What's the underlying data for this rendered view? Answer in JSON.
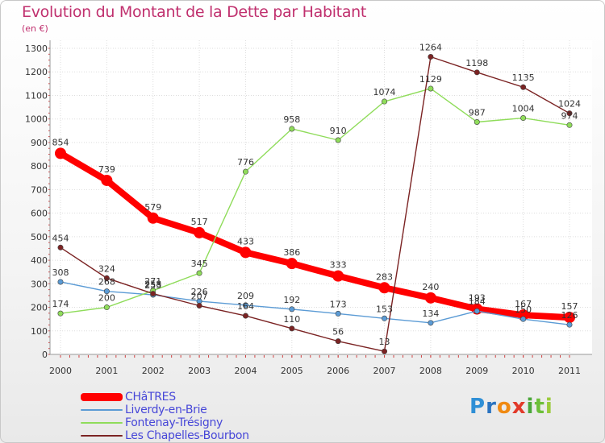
{
  "title": "Evolution du Montant de la Dette par Habitant",
  "unit_label": "(en €)",
  "logo": "Proxiti",
  "chart_data": {
    "type": "line",
    "title": "Evolution du Montant de la Dette par Habitant",
    "subtitle": "(en €)",
    "x": [
      "2000",
      "2001",
      "2002",
      "2003",
      "2004",
      "2005",
      "2006",
      "2007",
      "2008",
      "2009",
      "2010",
      "2011"
    ],
    "ylim": [
      0,
      1300
    ],
    "yticks": [
      0,
      100,
      200,
      300,
      400,
      500,
      600,
      700,
      800,
      900,
      1000,
      1100,
      1200,
      1300
    ],
    "grid": true,
    "legend_position": "bottom-left",
    "series": [
      {
        "name": "CHâTRES",
        "color": "#ff0000",
        "values": [
          854,
          739,
          579,
          517,
          433,
          386,
          333,
          283,
          240,
          193,
          167,
          157
        ]
      },
      {
        "name": "Liverdy-en-Brie",
        "color": "#5b9bd5",
        "values": [
          308,
          268,
          253,
          226,
          209,
          192,
          173,
          153,
          134,
          184,
          150,
          126
        ]
      },
      {
        "name": "Fontenay-Trésigny",
        "color": "#8fdc5a",
        "values": [
          174,
          200,
          271,
          345,
          776,
          958,
          910,
          1074,
          1129,
          987,
          1004,
          974
        ]
      },
      {
        "name": "Les Chapelles-Bourbon",
        "color": "#7b2323",
        "values": [
          454,
          324,
          258,
          207,
          164,
          110,
          56,
          13,
          1264,
          1198,
          1135,
          1024
        ]
      }
    ]
  }
}
